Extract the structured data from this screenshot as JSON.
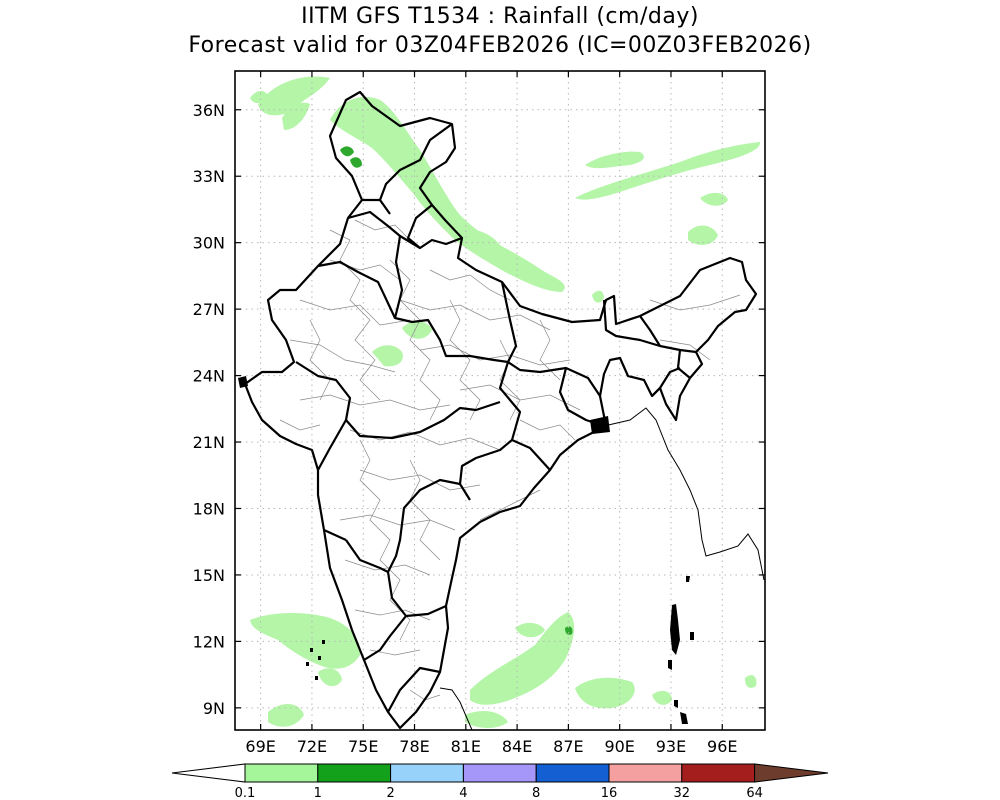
{
  "title_line1": "IITM GFS T1534 : Rainfall (cm/day)",
  "title_line2": "Forecast valid for 03Z04FEB2026 (IC=00Z03FEB2026)",
  "map": {
    "lon_range": [
      67.5,
      98.5
    ],
    "lat_range": [
      8.0,
      37.75
    ],
    "lon_ticks": [
      {
        "v": 69,
        "label": "69E"
      },
      {
        "v": 72,
        "label": "72E"
      },
      {
        "v": 75,
        "label": "75E"
      },
      {
        "v": 78,
        "label": "78E"
      },
      {
        "v": 81,
        "label": "81E"
      },
      {
        "v": 84,
        "label": "84E"
      },
      {
        "v": 87,
        "label": "87E"
      },
      {
        "v": 90,
        "label": "90E"
      },
      {
        "v": 93,
        "label": "93E"
      },
      {
        "v": 96,
        "label": "96E"
      }
    ],
    "lat_ticks": [
      {
        "v": 36,
        "label": "36N"
      },
      {
        "v": 33,
        "label": "33N"
      },
      {
        "v": 30,
        "label": "30N"
      },
      {
        "v": 27,
        "label": "27N"
      },
      {
        "v": 24,
        "label": "24N"
      },
      {
        "v": 21,
        "label": "21N"
      },
      {
        "v": 18,
        "label": "18N"
      },
      {
        "v": 15,
        "label": "15N"
      },
      {
        "v": 12,
        "label": "12N"
      },
      {
        "v": 9,
        "label": "9N"
      }
    ],
    "grid": "dotted"
  },
  "colorbar": {
    "levels": [
      "0.1",
      "1",
      "2",
      "4",
      "8",
      "16",
      "32",
      "64"
    ],
    "colors": [
      "#a5f59b",
      "#13a01a",
      "#96d2fa",
      "#a596fa",
      "#1460d2",
      "#f5a0a0",
      "#a51e1e"
    ],
    "under_color": "#ffffff",
    "over_color": "#6e3c2d"
  },
  "rain_color_light": "#b4f5a8",
  "rain_color_moderate": "#2da82d"
}
